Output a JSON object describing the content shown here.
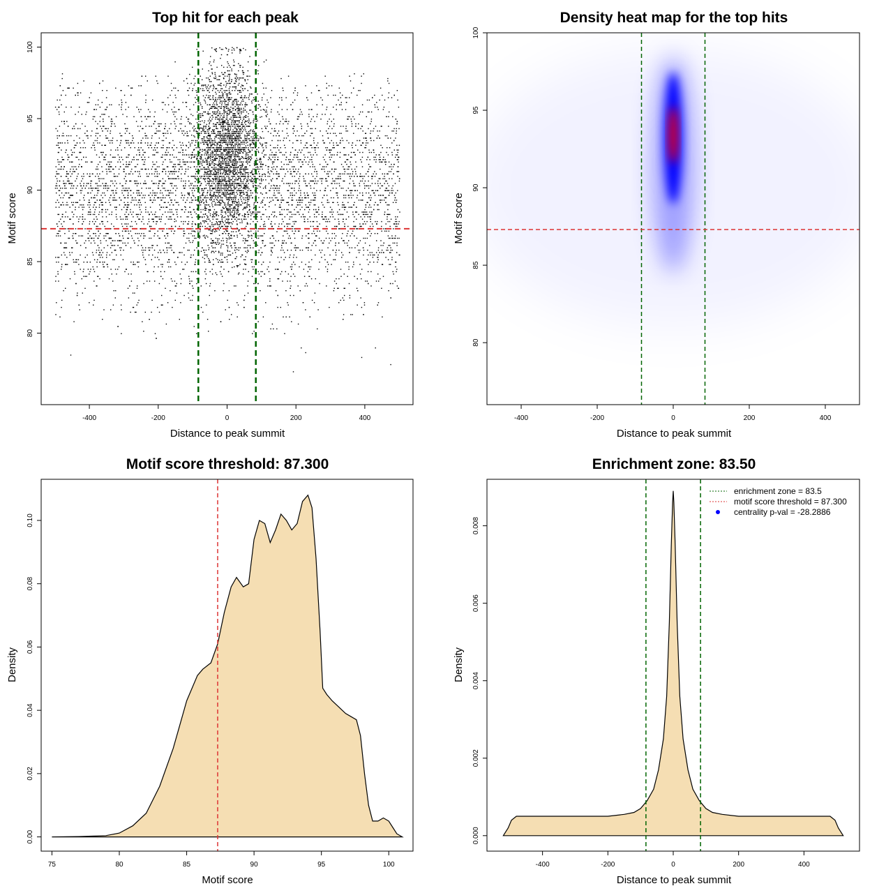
{
  "chart_data": [
    {
      "panel": "top-left",
      "type": "scatter",
      "title": "Top hit for each peak",
      "xlabel": "Distance to peak summit",
      "ylabel": "Motif score",
      "xlim": [
        -540,
        540
      ],
      "ylim": [
        75,
        101
      ],
      "xticks": [
        -400,
        -200,
        0,
        200,
        400
      ],
      "yticks": [
        80,
        85,
        90,
        95,
        100
      ],
      "xtick_labels": [
        "-400",
        "-200",
        "0",
        "200",
        "400"
      ],
      "ytick_labels": [
        "80",
        "85",
        "90",
        "95",
        "100"
      ],
      "vlines": [
        -83.5,
        83.5
      ],
      "hline": 87.3,
      "point_summary": {
        "x_range": [
          -500,
          500
        ],
        "background_score_center": 90,
        "background_score_sd": 3.8,
        "central_cluster_x_sd": 45,
        "central_cluster_score_center": 92.5,
        "score_max": 100
      },
      "colors": {
        "points": "#000000",
        "vline": "#006400",
        "hline": "#dd3333"
      }
    },
    {
      "panel": "top-right",
      "type": "heatmap",
      "title": "Density heat map for the top hits",
      "xlabel": "Distance to peak summit",
      "ylabel": "Motif score",
      "xlim": [
        -490,
        490
      ],
      "ylim": [
        76,
        100
      ],
      "xticks": [
        -400,
        -200,
        0,
        200,
        400
      ],
      "yticks": [
        80,
        85,
        90,
        95,
        100
      ],
      "xtick_labels": [
        "-400",
        "-200",
        "0",
        "200",
        "400"
      ],
      "ytick_labels": [
        "80",
        "85",
        "90",
        "95",
        "100"
      ],
      "vlines": [
        -83.5,
        83.5
      ],
      "hline": 87.3,
      "density_peak": {
        "x": 0,
        "y": 94
      },
      "colors": {
        "low": "#ffffff",
        "mid": "#0000ff",
        "high": "#ff0000",
        "vline": "#006400",
        "hline": "#dd3333"
      }
    },
    {
      "panel": "bottom-left",
      "type": "area",
      "title": "Motif score threshold: 87.300",
      "xlabel": "Motif score",
      "ylabel": "Density",
      "xlim": [
        74.2,
        101.8
      ],
      "ylim": [
        -0.0045,
        0.113
      ],
      "xticks": [
        75,
        80,
        85,
        90,
        95,
        100
      ],
      "yticks": [
        0.0,
        0.02,
        0.04,
        0.06,
        0.08,
        0.1
      ],
      "xtick_labels": [
        "75",
        "80",
        "85",
        "90",
        "95",
        "100"
      ],
      "ytick_labels": [
        "0.00",
        "0.02",
        "0.04",
        "0.06",
        "0.08",
        "0.10"
      ],
      "vline": 87.3,
      "x": [
        75,
        77,
        79,
        80,
        81,
        82,
        83,
        84,
        85,
        85.8,
        86.2,
        86.8,
        87.3,
        87.8,
        88.3,
        88.7,
        89.2,
        89.6,
        90.0,
        90.4,
        90.8,
        91.2,
        91.6,
        92.0,
        92.4,
        92.8,
        93.2,
        93.6,
        94.0,
        94.3,
        94.6,
        94.9,
        95.1,
        95.4,
        95.8,
        96.3,
        96.8,
        97.2,
        97.6,
        97.9,
        98.2,
        98.5,
        98.8,
        99.2,
        99.6,
        100.0,
        100.3,
        100.6,
        101.0
      ],
      "y": [
        0.0,
        0.0001,
        0.0004,
        0.0012,
        0.0035,
        0.0075,
        0.016,
        0.028,
        0.043,
        0.051,
        0.053,
        0.055,
        0.061,
        0.071,
        0.079,
        0.082,
        0.079,
        0.08,
        0.094,
        0.1,
        0.099,
        0.093,
        0.097,
        0.102,
        0.1,
        0.097,
        0.099,
        0.106,
        0.108,
        0.104,
        0.088,
        0.065,
        0.047,
        0.045,
        0.043,
        0.041,
        0.039,
        0.038,
        0.037,
        0.032,
        0.02,
        0.01,
        0.005,
        0.005,
        0.006,
        0.005,
        0.003,
        0.001,
        0.0
      ]
    },
    {
      "panel": "bottom-right",
      "type": "area",
      "title": "Enrichment zone: 83.50",
      "xlabel": "Distance to peak summit",
      "ylabel": "Density",
      "xlim": [
        -570,
        570
      ],
      "ylim": [
        -0.0004,
        0.0092
      ],
      "xticks": [
        -400,
        -200,
        0,
        200,
        400
      ],
      "yticks": [
        0.0,
        0.002,
        0.004,
        0.006,
        0.008
      ],
      "xtick_labels": [
        "-400",
        "-200",
        "0",
        "200",
        "400"
      ],
      "ytick_labels": [
        "0.000",
        "0.002",
        "0.004",
        "0.006",
        "0.008"
      ],
      "vlines": [
        -83.5,
        83.5
      ],
      "x": [
        -520,
        -505,
        -495,
        -480,
        -450,
        -400,
        -350,
        -300,
        -250,
        -200,
        -150,
        -120,
        -100,
        -80,
        -60,
        -45,
        -30,
        -20,
        -12,
        -6,
        -2,
        0,
        2,
        6,
        12,
        20,
        30,
        45,
        60,
        80,
        100,
        120,
        150,
        200,
        250,
        300,
        350,
        400,
        450,
        480,
        495,
        505,
        520
      ],
      "y": [
        0.0,
        0.0002,
        0.0004,
        0.0005,
        0.0005,
        0.0005,
        0.0005,
        0.0005,
        0.0005,
        0.0005,
        0.00055,
        0.0006,
        0.0007,
        0.0009,
        0.0012,
        0.0017,
        0.0025,
        0.0036,
        0.0055,
        0.0075,
        0.0086,
        0.0089,
        0.0086,
        0.0075,
        0.0055,
        0.0036,
        0.0025,
        0.0017,
        0.0012,
        0.0009,
        0.0007,
        0.0006,
        0.00055,
        0.0005,
        0.0005,
        0.0005,
        0.0005,
        0.0005,
        0.0005,
        0.0005,
        0.0004,
        0.0002,
        0.0
      ],
      "legend": [
        {
          "label": "enrichment zone = 83.5",
          "style": "dotted-line",
          "color": "#006400"
        },
        {
          "label": "motif score threshold = 87.300",
          "style": "dotted-line",
          "color": "#dd3333"
        },
        {
          "label": "centrality p-val = -28.2886",
          "style": "point",
          "color": "#0000ff"
        }
      ],
      "legend_position": "top-right"
    }
  ]
}
